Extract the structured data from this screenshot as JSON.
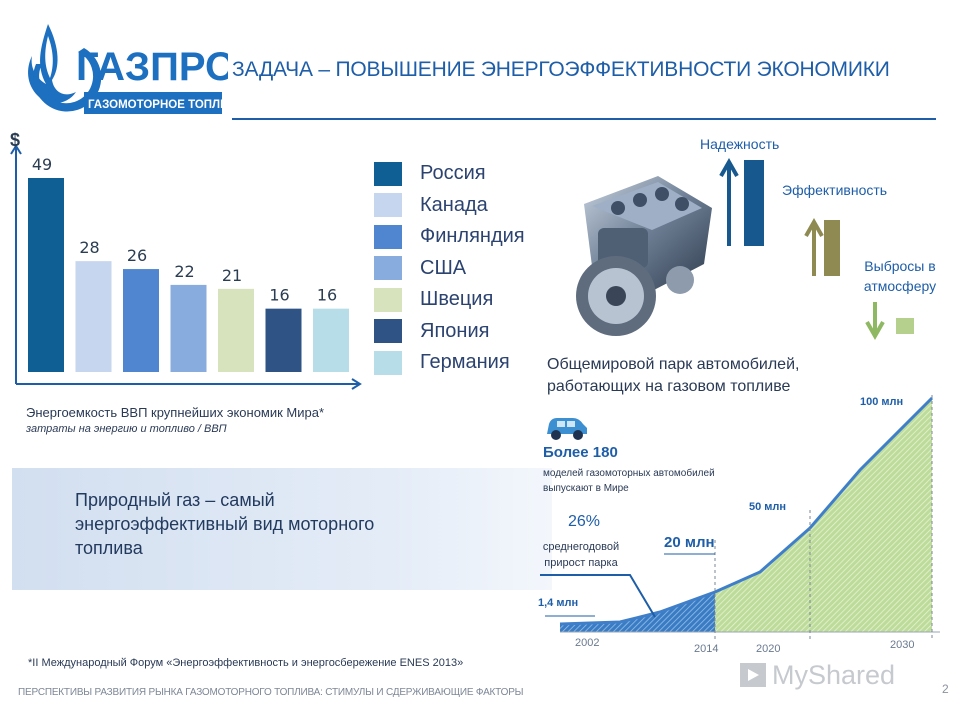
{
  "header": {
    "logo_name": "ГАЗПРОМ",
    "logo_subtitle": "ГАЗОМОТОРНОЕ ТОПЛИВО",
    "title": "ЗАДАЧА – ПОВЫШЕНИЕ ЭНЕРГОЭФФЕКТИВНОСТИ ЭКОНОМИКИ"
  },
  "chart_data": [
    {
      "type": "bar",
      "ylabel": "$",
      "categories": [
        "Россия",
        "Канада",
        "Финляндия",
        "США",
        "Швеция",
        "Япония",
        "Германия"
      ],
      "values": [
        49,
        28,
        26,
        22,
        21,
        16,
        16
      ],
      "colors": [
        "#0f5f95",
        "#c5d6ee",
        "#4f86cf",
        "#88acdd",
        "#d7e3bd",
        "#2e5384",
        "#b7dde8"
      ],
      "legend_position": "right",
      "caption": "Энергоемкость ВВП крупнейших экономик Мира*",
      "subcaption": "затраты на энергию и топливо  / ВВП"
    },
    {
      "type": "area",
      "title": "Общемировой парк автомобилей, работающих на газовом топливе",
      "x_labels": [
        "2002",
        "2014",
        "2020",
        "2030"
      ],
      "points": [
        {
          "x": 2002,
          "label": "1,4 млн"
        },
        {
          "x": 2014,
          "label": "20 млн"
        },
        {
          "x": 2020,
          "label": "50 млн"
        },
        {
          "x": 2030,
          "label": "100 млн"
        }
      ]
    }
  ],
  "nat_gas_text": "Природный газ – самый энергоэффективный вид моторного топлива",
  "indicators": {
    "reliability": "Надежность",
    "efficiency": "Эффективность",
    "emissions": "Выбросы в атмосферу",
    "colors": {
      "reliability": "#17588f",
      "efficiency": "#8e8a52",
      "emissions": "#b5cf8c"
    }
  },
  "fleet": {
    "models_count": "Более 180",
    "models_text": "моделей газомоторных автомобилей выпускают в Мире",
    "growth_pct": "26%",
    "growth_text": "среднегодовой прирост парка"
  },
  "footnote": "*II Международный Форум «Энергоэффективность и энергосбережение ENES 2013»",
  "footer": "ПЕРСПЕКТИВЫ РАЗВИТИЯ РЫНКА ГАЗОМОТОРНОГО ТОПЛИВА: СТИМУЛЫ И СДЕРЖИВАЮЩИЕ ФАКТОРЫ",
  "page_number": "2",
  "watermark": "MyShared"
}
